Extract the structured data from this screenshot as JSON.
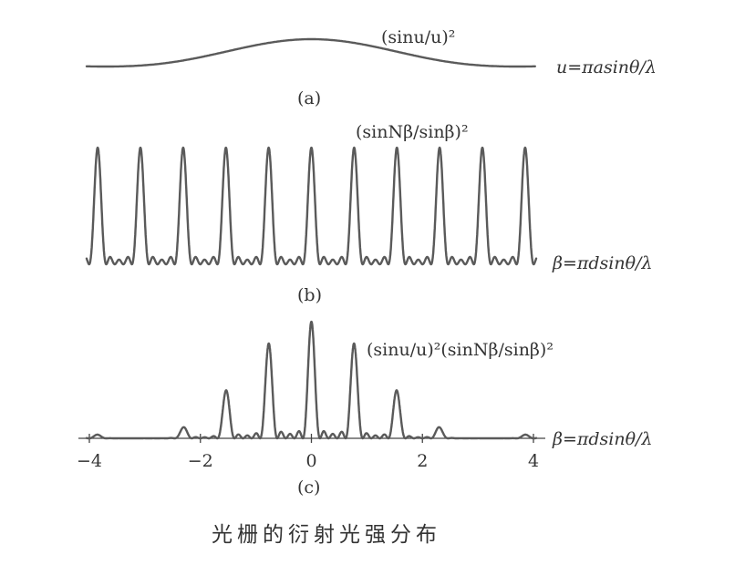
{
  "caption": "光栅的衍射光强分布",
  "chart_data": [
    {
      "id": "a",
      "type": "line",
      "panel_label": "(a)",
      "formula": "(sinu/u)²",
      "xlabel": "u=πasinθ/λ",
      "function": "sinc_squared",
      "x_range": [
        -4,
        4
      ]
    },
    {
      "id": "b",
      "type": "line",
      "panel_label": "(b)",
      "formula": "(sinNβ/sinβ)²",
      "xlabel": "β=πdsinθ/λ",
      "function": "grating_factor",
      "N": 5,
      "x_range": [
        -4,
        4
      ],
      "principal_maxima": [
        -3.85,
        -3.08,
        -2.31,
        -1.54,
        -0.77,
        0,
        0.77,
        1.54,
        2.31,
        3.08,
        3.85
      ]
    },
    {
      "id": "c",
      "type": "line",
      "panel_label": "(c)",
      "formula": "(sinu/u)²(sinNβ/sinβ)²",
      "xlabel": "β=πdsinθ/λ",
      "function": "product",
      "x_range": [
        -4,
        4
      ],
      "xticks": [
        -4,
        -2,
        0,
        2,
        4
      ],
      "xtick_labels": [
        "−4",
        "−2",
        "0",
        "2",
        "4"
      ],
      "peaks": [
        {
          "x": -3.85,
          "y": 0.03
        },
        {
          "x": -2.31,
          "y": 0.1
        },
        {
          "x": -1.54,
          "y": 0.43
        },
        {
          "x": -0.77,
          "y": 0.81
        },
        {
          "x": 0,
          "y": 1.0
        },
        {
          "x": 0.77,
          "y": 0.81
        },
        {
          "x": 1.54,
          "y": 0.43
        },
        {
          "x": 2.31,
          "y": 0.1
        },
        {
          "x": 3.85,
          "y": 0.03
        }
      ]
    }
  ]
}
